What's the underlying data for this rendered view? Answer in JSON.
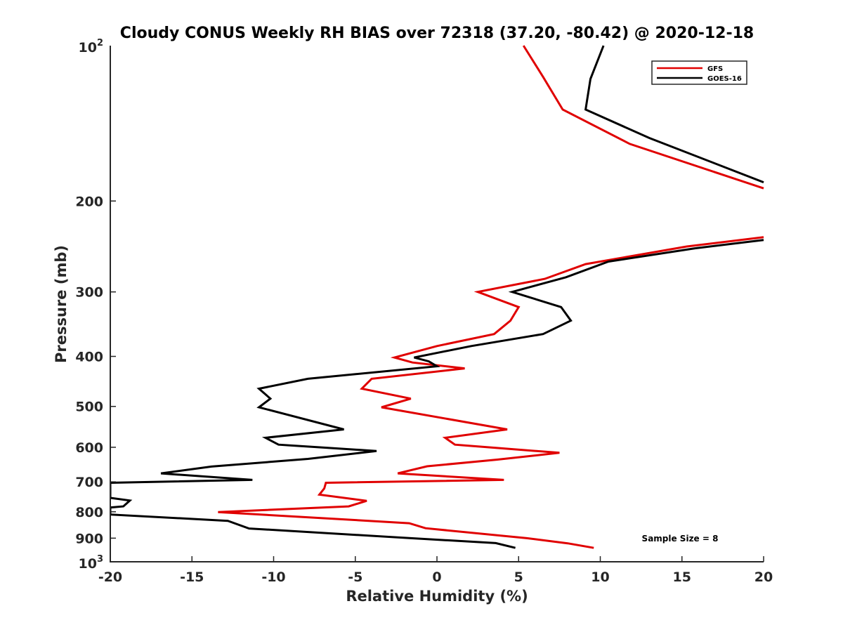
{
  "chart_data": {
    "type": "line",
    "title": "Cloudy CONUS Weekly RH BIAS over 72318 (37.20, -80.42) @ 2020-12-18",
    "xlabel": "Relative Humidity (%)",
    "ylabel": "Pressure (mb)",
    "xlim": [
      -20,
      20
    ],
    "ylim": [
      100,
      1000
    ],
    "yscale": "log",
    "y_reversed": true,
    "x_ticks": [
      -20,
      -15,
      -10,
      -5,
      0,
      5,
      10,
      15,
      20
    ],
    "x_tick_labels": [
      "-20",
      "-15",
      "-10",
      "-5",
      "0",
      "5",
      "10",
      "15",
      "20"
    ],
    "y_ticks": [
      200,
      300,
      400,
      500,
      600,
      700,
      800,
      900
    ],
    "y_tick_labels": [
      "200",
      "300",
      "400",
      "500",
      "600",
      "700",
      "800",
      "900"
    ],
    "y_end_labels": [
      {
        "value": 100,
        "base": "10",
        "exp": "2"
      },
      {
        "value": 1000,
        "base": "10",
        "exp": "3"
      }
    ],
    "legend": {
      "position": "top-right",
      "entries": [
        {
          "name": "GFS",
          "color": "#e00000"
        },
        {
          "name": "GOES-16",
          "color": "#000000"
        }
      ]
    },
    "annotation": "Sample Size = 8",
    "series": [
      {
        "name": "GFS",
        "color": "#e00000",
        "points": [
          [
            5.3,
            100
          ],
          [
            6.5,
            115
          ],
          [
            7.7,
            133
          ],
          [
            11.8,
            155
          ],
          [
            20,
            189
          ],
          [
            null,
            210
          ],
          [
            20,
            235
          ],
          [
            15.3,
            245
          ],
          [
            9.1,
            265
          ],
          [
            6.6,
            283
          ],
          [
            2.5,
            300
          ],
          [
            5.0,
            321
          ],
          [
            4.5,
            341
          ],
          [
            3.5,
            362
          ],
          [
            0,
            382
          ],
          [
            -2.6,
            402
          ],
          [
            -1.5,
            411
          ],
          [
            1.7,
            422
          ],
          [
            -4.0,
            442
          ],
          [
            -4.6,
            462
          ],
          [
            -1.6,
            483
          ],
          [
            -3.4,
            502
          ],
          [
            4.3,
            554
          ],
          [
            0.5,
            575
          ],
          [
            1.1,
            593
          ],
          [
            7.5,
            615
          ],
          [
            3.7,
            634
          ],
          [
            -0.6,
            653
          ],
          [
            -2.4,
            674
          ],
          [
            4.1,
            694
          ],
          [
            -6.8,
            703
          ],
          [
            -6.9,
            721
          ],
          [
            -7.2,
            741
          ],
          [
            -4.3,
            762
          ],
          [
            -5.4,
            781
          ],
          [
            -13.4,
            801
          ],
          [
            -1.7,
            842
          ],
          [
            -0.7,
            861
          ],
          [
            5.5,
            900
          ],
          [
            8.0,
            921
          ],
          [
            9.6,
            940
          ]
        ]
      },
      {
        "name": "GOES-16",
        "color": "#000000",
        "points": [
          [
            10.2,
            100
          ],
          [
            9.4,
            116
          ],
          [
            9.1,
            133
          ],
          [
            13.0,
            151
          ],
          [
            20,
            184
          ],
          [
            null,
            210
          ],
          [
            20,
            238
          ],
          [
            15.8,
            247
          ],
          [
            10.5,
            262
          ],
          [
            7.9,
            281
          ],
          [
            4.6,
            300
          ],
          [
            7.6,
            321
          ],
          [
            8.2,
            341
          ],
          [
            6.5,
            362
          ],
          [
            2.1,
            382
          ],
          [
            -1.4,
            402
          ],
          [
            -0.5,
            409
          ],
          [
            0,
            418
          ],
          [
            -7.9,
            442
          ],
          [
            -10.9,
            462
          ],
          [
            -10.2,
            483
          ],
          [
            -10.9,
            502
          ],
          [
            -5.7,
            554
          ],
          [
            -10.5,
            575
          ],
          [
            -9.7,
            593
          ],
          [
            -3.7,
            610
          ],
          [
            -7.9,
            632
          ],
          [
            -13.8,
            654
          ],
          [
            -16.9,
            674
          ],
          [
            -11.3,
            694
          ],
          [
            -20,
            703
          ],
          [
            -20,
            752
          ],
          [
            -18.8,
            761
          ],
          [
            -19.2,
            781
          ],
          [
            -20,
            785
          ],
          [
            -20,
            810
          ],
          [
            -12.8,
            833
          ],
          [
            -11.5,
            862
          ],
          [
            -1.6,
            900
          ],
          [
            3.6,
            920
          ],
          [
            4.8,
            940
          ]
        ]
      }
    ]
  }
}
